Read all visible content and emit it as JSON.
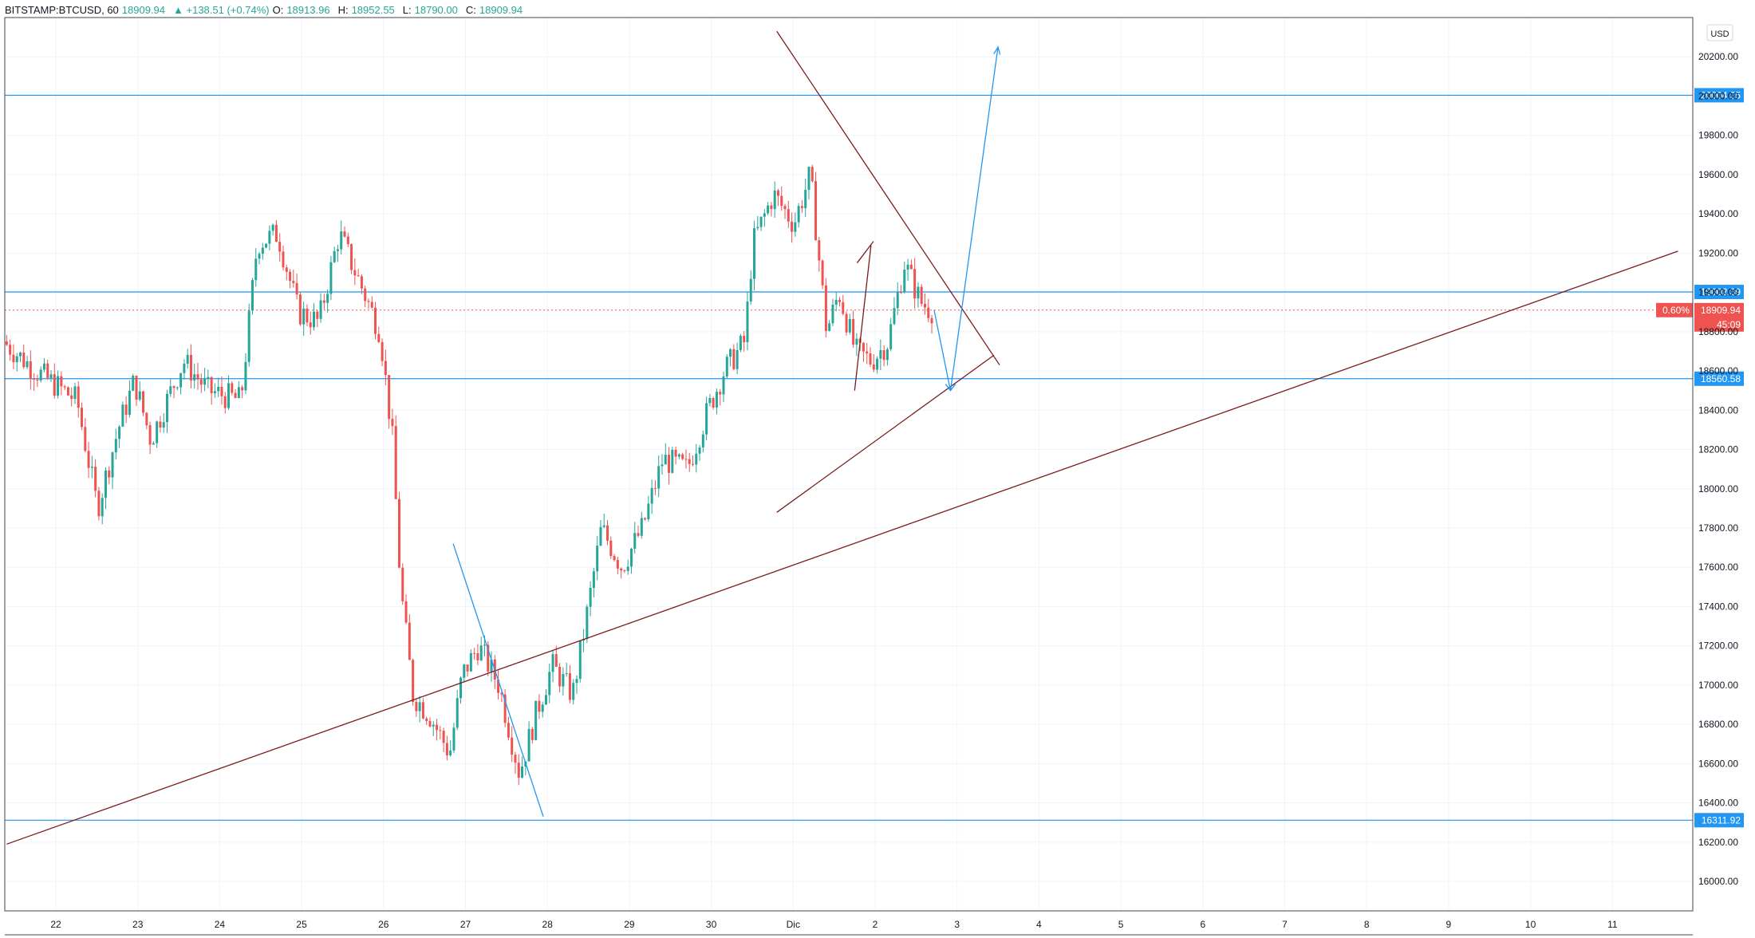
{
  "header": {
    "symbol": "BITSTAMP:BTCUSD, 60",
    "last": "18909.94",
    "change": "▲ +138.51 (+0.74%)",
    "o_label": "O:",
    "o_value": "18913.96",
    "h_label": "H:",
    "h_value": "18952.55",
    "l_label": "L:",
    "l_value": "18790.00",
    "c_label": "C:",
    "c_value": "18909.94"
  },
  "currency_button": "USD",
  "colors": {
    "up": "#26a69a",
    "down": "#ef5350",
    "hline": "#2196f3",
    "trend": "#7b1a1a",
    "grid": "#f0f3fa",
    "axis_text": "#131722"
  },
  "chart_data": {
    "type": "candlestick",
    "symbol": "BITSTAMP:BTCUSD",
    "interval": "60",
    "ylim": [
      15850,
      20400
    ],
    "price_ticks": [
      16000,
      16200,
      16400,
      16600,
      16800,
      17000,
      17200,
      17400,
      17600,
      17800,
      18000,
      18200,
      18400,
      18600,
      18800,
      19000,
      19200,
      19400,
      19600,
      19800,
      20000,
      20200
    ],
    "x_labels": [
      {
        "day": 0,
        "label": "22"
      },
      {
        "day": 1,
        "label": "23"
      },
      {
        "day": 2,
        "label": "24"
      },
      {
        "day": 3,
        "label": "25"
      },
      {
        "day": 4,
        "label": "26"
      },
      {
        "day": 5,
        "label": "27"
      },
      {
        "day": 6,
        "label": "28"
      },
      {
        "day": 7,
        "label": "29"
      },
      {
        "day": 8,
        "label": "30"
      },
      {
        "day": 9,
        "label": "Dic"
      },
      {
        "day": 10,
        "label": "2"
      },
      {
        "day": 11,
        "label": "3"
      },
      {
        "day": 12,
        "label": "4"
      },
      {
        "day": 13,
        "label": "5"
      },
      {
        "day": 14,
        "label": "6"
      },
      {
        "day": 15,
        "label": "7"
      },
      {
        "day": 16,
        "label": "8"
      },
      {
        "day": 17,
        "label": "9"
      },
      {
        "day": 18,
        "label": "10"
      },
      {
        "day": 19,
        "label": "11"
      }
    ],
    "daily_anchors": [
      {
        "day": -0.6,
        "price": 18750
      },
      {
        "day": -0.2,
        "price": 18600
      },
      {
        "day": 0.3,
        "price": 18450
      },
      {
        "day": 0.55,
        "price": 17900
      },
      {
        "day": 0.8,
        "price": 18300
      },
      {
        "day": 1.0,
        "price": 18550
      },
      {
        "day": 1.2,
        "price": 18250
      },
      {
        "day": 1.6,
        "price": 18650
      },
      {
        "day": 1.9,
        "price": 18500
      },
      {
        "day": 2.3,
        "price": 18450
      },
      {
        "day": 2.5,
        "price": 19250
      },
      {
        "day": 2.75,
        "price": 19300
      },
      {
        "day": 3.0,
        "price": 18900
      },
      {
        "day": 3.25,
        "price": 18850
      },
      {
        "day": 3.5,
        "price": 19300
      },
      {
        "day": 3.8,
        "price": 19000
      },
      {
        "day": 4.0,
        "price": 18800
      },
      {
        "day": 4.15,
        "price": 18250
      },
      {
        "day": 4.25,
        "price": 17500
      },
      {
        "day": 4.4,
        "price": 16950
      },
      {
        "day": 4.6,
        "price": 16850
      },
      {
        "day": 4.85,
        "price": 16650
      },
      {
        "day": 5.0,
        "price": 17050
      },
      {
        "day": 5.2,
        "price": 17200
      },
      {
        "day": 5.45,
        "price": 17000
      },
      {
        "day": 5.7,
        "price": 16550
      },
      {
        "day": 5.9,
        "price": 16850
      },
      {
        "day": 6.1,
        "price": 17100
      },
      {
        "day": 6.35,
        "price": 16950
      },
      {
        "day": 6.5,
        "price": 17300
      },
      {
        "day": 6.7,
        "price": 17800
      },
      {
        "day": 6.95,
        "price": 17600
      },
      {
        "day": 7.2,
        "price": 17800
      },
      {
        "day": 7.45,
        "price": 18150
      },
      {
        "day": 7.75,
        "price": 18100
      },
      {
        "day": 8.0,
        "price": 18400
      },
      {
        "day": 8.2,
        "price": 18600
      },
      {
        "day": 8.45,
        "price": 18750
      },
      {
        "day": 8.55,
        "price": 19250
      },
      {
        "day": 8.8,
        "price": 19500
      },
      {
        "day": 9.05,
        "price": 19350
      },
      {
        "day": 9.25,
        "price": 19600
      },
      {
        "day": 9.35,
        "price": 19200
      },
      {
        "day": 9.45,
        "price": 18800
      },
      {
        "day": 9.6,
        "price": 19000
      },
      {
        "day": 9.8,
        "price": 18700
      },
      {
        "day": 10.0,
        "price": 18650
      },
      {
        "day": 10.2,
        "price": 18750
      },
      {
        "day": 10.4,
        "price": 19150
      },
      {
        "day": 10.6,
        "price": 18950
      },
      {
        "day": 10.72,
        "price": 18910
      }
    ],
    "horizontal_levels": [
      {
        "price": 20004.25,
        "label": "20004.25"
      },
      {
        "price": 19002.39,
        "label": "19002.39"
      },
      {
        "price": 18560.58,
        "label": "18560.58"
      },
      {
        "price": 16311.92,
        "label": "16311.92"
      }
    ],
    "last_price": {
      "price": 18909.94,
      "label": "18909.94",
      "percent": "0.60%",
      "countdown": "45:09"
    },
    "trendlines": [
      {
        "name": "long-rising-support",
        "x1": -0.6,
        "y1": 16190,
        "x2": 19.8,
        "y2": 19210
      },
      {
        "name": "triangle-upper",
        "x1": 8.8,
        "y1": 20330,
        "x2": 11.52,
        "y2": 18630
      },
      {
        "name": "triangle-lower",
        "x1": 8.8,
        "y1": 17880,
        "x2": 11.45,
        "y2": 18680
      },
      {
        "name": "small-flag-left",
        "x1": 9.75,
        "y1": 18500,
        "x2": 9.95,
        "y2": 19240
      },
      {
        "name": "small-flag-right",
        "x1": 9.78,
        "y1": 19150,
        "x2": 9.98,
        "y2": 19260
      },
      {
        "name": "falling-line-nov27",
        "x1": 4.85,
        "y1": 17720,
        "x2": 5.95,
        "y2": 16330
      }
    ],
    "projection": {
      "points": [
        {
          "day": 10.72,
          "price": 18910
        },
        {
          "day": 10.92,
          "price": 18500
        },
        {
          "day": 11.5,
          "price": 20250
        }
      ]
    }
  }
}
